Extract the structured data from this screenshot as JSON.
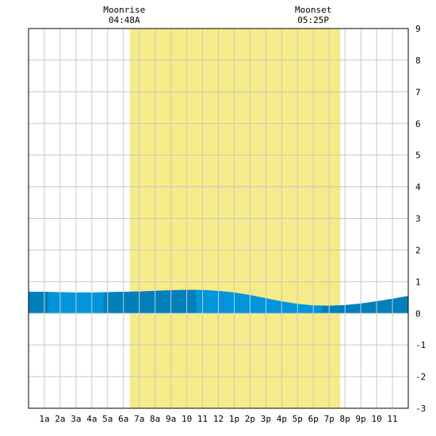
{
  "chart_data": {
    "type": "area",
    "title": "",
    "xlabel": "",
    "ylabel": "",
    "x_range_hours": [
      0,
      24
    ],
    "ylim": [
      -3,
      9
    ],
    "y_ticks": [
      -3,
      -2,
      -1,
      0,
      1,
      2,
      3,
      4,
      5,
      6,
      7,
      8,
      9
    ],
    "x_tick_labels": [
      "1a",
      "2a",
      "3a",
      "4a",
      "5a",
      "6a",
      "7a",
      "8a",
      "9a",
      "10",
      "11",
      "12",
      "1p",
      "2p",
      "3p",
      "4p",
      "5p",
      "6p",
      "7p",
      "8p",
      "9p",
      "10",
      "11"
    ],
    "grid": true,
    "daylight_band_hours": [
      6.4,
      19.7
    ],
    "daylight_color": "#f5eb88",
    "moonrise": {
      "label": "Moonrise",
      "time": "04:48A"
    },
    "moonset": {
      "label": "Moonset",
      "time": "05:25P"
    },
    "series": [
      {
        "x": [
          0,
          1,
          2,
          3,
          4,
          5,
          6,
          7,
          8,
          9,
          10,
          11,
          12,
          13,
          14,
          15,
          16,
          17,
          18,
          19,
          20,
          21,
          22,
          23,
          24
        ],
        "values": [
          0.68,
          0.68,
          0.67,
          0.66,
          0.66,
          0.67,
          0.68,
          0.69,
          0.71,
          0.73,
          0.74,
          0.74,
          0.71,
          0.66,
          0.58,
          0.48,
          0.38,
          0.3,
          0.25,
          0.24,
          0.26,
          0.31,
          0.38,
          0.46,
          0.55
        ]
      }
    ],
    "colors": {
      "tide_light": "#0095dd",
      "tide_dark": "#0080bb",
      "grid": "#c8c8c8"
    },
    "dark_bands_hours": [
      [
        0,
        1.25
      ],
      [
        4.75,
        10.6
      ],
      [
        18.55,
        24
      ]
    ]
  }
}
